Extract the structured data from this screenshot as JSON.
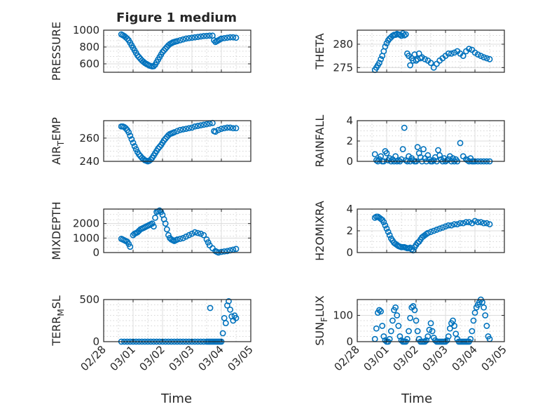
{
  "figure_title": "Figure 1 medium",
  "x_axis_label": "Time",
  "x_tick_labels": [
    "02/28",
    "03/01",
    "03/02",
    "03/03",
    "03/04",
    "03/05"
  ],
  "colors": {
    "marker": "#0072BD",
    "axes": "#262626",
    "grid": "#dcdcdc",
    "background": "#ffffff"
  },
  "chart_data": [
    {
      "type": "scatter",
      "name": "pressure",
      "ylabel": "PRESSURE",
      "ylabel_sub": "",
      "xlim": [
        0,
        5
      ],
      "ylim": [
        500,
        1000
      ],
      "yticks": [
        600,
        800,
        1000
      ],
      "grid": true,
      "x": [
        0.6,
        0.65,
        0.7,
        0.75,
        0.8,
        0.85,
        0.9,
        0.95,
        1.0,
        1.05,
        1.1,
        1.15,
        1.2,
        1.25,
        1.3,
        1.35,
        1.4,
        1.45,
        1.5,
        1.55,
        1.6,
        1.65,
        1.7,
        1.75,
        1.8,
        1.85,
        1.9,
        1.95,
        2.0,
        2.05,
        2.1,
        2.15,
        2.2,
        2.25,
        2.3,
        2.35,
        2.4,
        2.45,
        2.5,
        2.6,
        2.7,
        2.8,
        2.9,
        3.0,
        3.1,
        3.2,
        3.3,
        3.4,
        3.5,
        3.6,
        3.7,
        3.75,
        3.8,
        3.85,
        3.9,
        3.95,
        4.0,
        4.1,
        4.2,
        4.3,
        4.4,
        4.5
      ],
      "y": [
        950,
        940,
        930,
        915,
        900,
        880,
        850,
        820,
        790,
        760,
        730,
        700,
        680,
        660,
        640,
        625,
        610,
        600,
        590,
        580,
        575,
        570,
        572,
        590,
        620,
        650,
        680,
        710,
        740,
        760,
        780,
        800,
        820,
        835,
        845,
        855,
        860,
        865,
        870,
        880,
        890,
        900,
        905,
        910,
        915,
        920,
        925,
        930,
        932,
        935,
        935,
        880,
        860,
        870,
        880,
        890,
        900,
        905,
        910,
        915,
        915,
        910
      ]
    },
    {
      "type": "scatter",
      "name": "theta",
      "ylabel": "THETA",
      "ylabel_sub": "",
      "xlim": [
        0,
        5
      ],
      "ylim": [
        274,
        283
      ],
      "yticks": [
        275,
        280
      ],
      "grid": true,
      "x": [
        0.6,
        0.65,
        0.7,
        0.75,
        0.8,
        0.85,
        0.9,
        0.95,
        1.0,
        1.05,
        1.1,
        1.15,
        1.2,
        1.25,
        1.3,
        1.35,
        1.4,
        1.45,
        1.5,
        1.55,
        1.6,
        1.65,
        1.7,
        1.75,
        1.8,
        1.85,
        1.9,
        1.95,
        2.0,
        2.05,
        2.1,
        2.15,
        2.2,
        2.3,
        2.4,
        2.5,
        2.6,
        2.7,
        2.8,
        2.9,
        3.0,
        3.1,
        3.2,
        3.3,
        3.4,
        3.5,
        3.6,
        3.7,
        3.8,
        3.9,
        4.0,
        4.1,
        4.2,
        4.3,
        4.4,
        4.5
      ],
      "y": [
        274.5,
        275,
        275.5,
        276,
        276.8,
        277.5,
        278.5,
        279.5,
        280.2,
        280.8,
        281.2,
        281.5,
        281.8,
        282,
        282,
        282.2,
        282.1,
        282,
        281.8,
        282.3,
        281.9,
        282.1,
        278,
        277.5,
        275.5,
        277,
        276.5,
        277.8,
        276.5,
        276.8,
        278,
        277,
        277.2,
        276.8,
        276.5,
        276,
        275,
        275.8,
        276.5,
        277,
        277.5,
        278,
        278,
        278.2,
        278.5,
        278,
        277.5,
        278.5,
        279,
        278.8,
        278.2,
        277.8,
        277.5,
        277.2,
        277,
        276.8
      ]
    },
    {
      "type": "scatter",
      "name": "air_temp",
      "ylabel": "AIR",
      "ylabel_sub": "T",
      "ylabel_tail": "EMP",
      "xlim": [
        0,
        5
      ],
      "ylim": [
        240,
        275
      ],
      "yticks": [
        240,
        260
      ],
      "grid": true,
      "x": [
        0.6,
        0.65,
        0.7,
        0.75,
        0.8,
        0.85,
        0.9,
        0.95,
        1.0,
        1.05,
        1.1,
        1.15,
        1.2,
        1.25,
        1.3,
        1.35,
        1.4,
        1.45,
        1.5,
        1.55,
        1.6,
        1.65,
        1.7,
        1.75,
        1.8,
        1.85,
        1.9,
        1.95,
        2.0,
        2.05,
        2.1,
        2.15,
        2.2,
        2.25,
        2.3,
        2.35,
        2.4,
        2.5,
        2.6,
        2.7,
        2.8,
        2.9,
        3.0,
        3.1,
        3.2,
        3.3,
        3.4,
        3.5,
        3.6,
        3.7,
        3.75,
        3.8,
        3.9,
        4.0,
        4.1,
        4.2,
        4.3,
        4.4,
        4.5
      ],
      "y": [
        270,
        270,
        269.5,
        268.5,
        267,
        265,
        262,
        259,
        256,
        253,
        250.5,
        248,
        246,
        244.5,
        243,
        242,
        241,
        240.5,
        240,
        240.5,
        241.5,
        243,
        245,
        247,
        249,
        251,
        252.5,
        254,
        256,
        258,
        259.5,
        261,
        262.5,
        263.5,
        264,
        264.5,
        265,
        266,
        267,
        267.5,
        268,
        268.5,
        269,
        270,
        270.5,
        271,
        271.5,
        272,
        272.5,
        273,
        266,
        265.5,
        267,
        268,
        268.5,
        269,
        269,
        268.5,
        268.5
      ]
    },
    {
      "type": "scatter",
      "name": "rainfall",
      "ylabel": "RAINFALL",
      "ylabel_sub": "",
      "xlim": [
        0,
        5
      ],
      "ylim": [
        0,
        4
      ],
      "yticks": [
        0,
        2,
        4
      ],
      "grid": true,
      "x": [
        0.6,
        0.65,
        0.7,
        0.75,
        0.8,
        0.85,
        0.9,
        0.95,
        1.0,
        1.05,
        1.1,
        1.15,
        1.2,
        1.25,
        1.3,
        1.35,
        1.4,
        1.45,
        1.5,
        1.55,
        1.6,
        1.65,
        1.7,
        1.75,
        1.8,
        1.85,
        1.9,
        1.95,
        2.0,
        2.05,
        2.1,
        2.15,
        2.2,
        2.25,
        2.3,
        2.35,
        2.4,
        2.45,
        2.5,
        2.55,
        2.6,
        2.65,
        2.7,
        2.75,
        2.8,
        2.85,
        2.9,
        2.95,
        3.0,
        3.05,
        3.1,
        3.15,
        3.2,
        3.25,
        3.3,
        3.35,
        3.4,
        3.5,
        3.6,
        3.7,
        3.75,
        3.8,
        3.85,
        3.9,
        3.95,
        4.0,
        4.1,
        4.2,
        4.3,
        4.4,
        4.5
      ],
      "y": [
        0.7,
        0.1,
        0,
        0.2,
        0.5,
        0,
        0,
        1.0,
        0.8,
        0.1,
        0.3,
        0,
        0.2,
        0,
        0.5,
        0,
        0.1,
        0,
        0.2,
        1.2,
        3.3,
        0.1,
        0,
        0.5,
        0,
        0.3,
        0.1,
        0,
        0,
        1.4,
        0.8,
        0.4,
        0,
        1.2,
        0.3,
        0,
        0.6,
        0.2,
        0,
        0,
        0.1,
        0.4,
        0,
        1.1,
        0.6,
        0.2,
        0,
        0.3,
        0,
        0.1,
        0.2,
        0.5,
        0,
        0.3,
        0,
        0.2,
        0,
        1.8,
        0.5,
        0.2,
        0.1,
        0,
        0.3,
        0,
        0,
        0,
        0,
        0,
        0,
        0,
        0
      ]
    },
    {
      "type": "scatter",
      "name": "mixdepth",
      "ylabel": "MIXDEPTH",
      "ylabel_sub": "",
      "xlim": [
        0,
        5
      ],
      "ylim": [
        0,
        3000
      ],
      "yticks": [
        0,
        1000,
        2000
      ],
      "grid": true,
      "x": [
        0.6,
        0.65,
        0.7,
        0.75,
        0.8,
        0.85,
        0.9,
        1.0,
        1.05,
        1.1,
        1.15,
        1.2,
        1.25,
        1.3,
        1.35,
        1.4,
        1.45,
        1.5,
        1.55,
        1.6,
        1.65,
        1.7,
        1.75,
        1.8,
        1.85,
        1.9,
        1.95,
        2.0,
        2.05,
        2.1,
        2.15,
        2.2,
        2.25,
        2.3,
        2.35,
        2.4,
        2.45,
        2.5,
        2.6,
        2.7,
        2.8,
        2.9,
        3.0,
        3.1,
        3.2,
        3.3,
        3.4,
        3.5,
        3.55,
        3.6,
        3.7,
        3.8,
        3.85,
        3.9,
        4.0,
        4.1,
        4.2,
        4.3,
        4.4,
        4.5
      ],
      "y": [
        950,
        900,
        850,
        800,
        750,
        600,
        400,
        1200,
        1300,
        1350,
        1400,
        1500,
        1600,
        1650,
        1700,
        1750,
        1800,
        1850,
        1900,
        1950,
        2000,
        1800,
        2400,
        2800,
        2850,
        2900,
        2800,
        2600,
        2300,
        2000,
        1600,
        1200,
        1000,
        900,
        850,
        800,
        850,
        900,
        950,
        1000,
        1100,
        1200,
        1300,
        1400,
        1350,
        1300,
        1200,
        900,
        700,
        500,
        300,
        100,
        50,
        0,
        50,
        80,
        100,
        150,
        200,
        250
      ]
    },
    {
      "type": "scatter",
      "name": "h2omixra",
      "ylabel": "H2OMIXRA",
      "ylabel_sub": "",
      "xlim": [
        0,
        5
      ],
      "ylim": [
        0,
        4
      ],
      "yticks": [
        0,
        2,
        4
      ],
      "grid": true,
      "x": [
        0.6,
        0.65,
        0.7,
        0.75,
        0.8,
        0.85,
        0.9,
        0.95,
        1.0,
        1.05,
        1.1,
        1.15,
        1.2,
        1.25,
        1.3,
        1.35,
        1.4,
        1.45,
        1.5,
        1.55,
        1.6,
        1.65,
        1.7,
        1.75,
        1.8,
        1.85,
        1.9,
        1.95,
        2.0,
        2.05,
        2.1,
        2.15,
        2.2,
        2.25,
        2.3,
        2.35,
        2.4,
        2.5,
        2.6,
        2.7,
        2.8,
        2.9,
        3.0,
        3.1,
        3.2,
        3.3,
        3.4,
        3.5,
        3.6,
        3.7,
        3.8,
        3.9,
        4.0,
        4.1,
        4.2,
        4.3,
        4.4,
        4.5
      ],
      "y": [
        3.2,
        3.3,
        3.3,
        3.2,
        3.1,
        3.0,
        2.8,
        2.5,
        2.2,
        1.9,
        1.6,
        1.3,
        1.1,
        0.9,
        0.8,
        0.7,
        0.6,
        0.55,
        0.5,
        0.5,
        0.5,
        0.45,
        0.4,
        0.4,
        0.45,
        0.3,
        0.2,
        0.5,
        0.7,
        0.9,
        1.0,
        1.2,
        1.4,
        1.5,
        1.6,
        1.7,
        1.8,
        1.9,
        2.0,
        2.1,
        2.2,
        2.3,
        2.4,
        2.5,
        2.5,
        2.6,
        2.6,
        2.7,
        2.7,
        2.8,
        2.8,
        2.7,
        2.9,
        2.8,
        2.8,
        2.7,
        2.7,
        2.6
      ]
    },
    {
      "type": "scatter",
      "name": "terr_msl",
      "ylabel": "TERR",
      "ylabel_sub": "M",
      "ylabel_tail": "SL",
      "xlim": [
        0,
        5
      ],
      "ylim": [
        0,
        500
      ],
      "yticks": [
        0,
        500
      ],
      "grid": true,
      "x": [
        0.6,
        0.7,
        0.8,
        0.9,
        1.0,
        1.1,
        1.2,
        1.3,
        1.4,
        1.5,
        1.6,
        1.7,
        1.8,
        1.9,
        2.0,
        2.1,
        2.2,
        2.3,
        2.4,
        2.5,
        2.6,
        2.7,
        2.8,
        2.9,
        3.0,
        3.1,
        3.2,
        3.3,
        3.4,
        3.5,
        3.55,
        3.6,
        3.62,
        3.65,
        3.7,
        3.75,
        3.8,
        3.85,
        3.9,
        3.95,
        4.0,
        4.05,
        4.1,
        4.15,
        4.2,
        4.25,
        4.3,
        4.35,
        4.4,
        4.45,
        4.5
      ],
      "y": [
        0,
        0,
        0,
        0,
        0,
        0,
        0,
        0,
        0,
        0,
        0,
        0,
        0,
        0,
        0,
        0,
        0,
        0,
        0,
        0,
        0,
        0,
        0,
        0,
        0,
        0,
        0,
        0,
        0,
        0,
        0,
        0,
        400,
        0,
        0,
        0,
        0,
        0,
        0,
        0,
        0,
        100,
        280,
        220,
        430,
        480,
        380,
        300,
        250,
        310,
        280
      ]
    },
    {
      "type": "scatter",
      "name": "sun_flux",
      "ylabel": "SUN",
      "ylabel_sub": "F",
      "ylabel_tail": "LUX",
      "xlim": [
        0,
        5
      ],
      "ylim": [
        0,
        160
      ],
      "yticks": [
        0,
        100
      ],
      "grid": true,
      "x": [
        0.6,
        0.65,
        0.7,
        0.75,
        0.8,
        0.85,
        0.9,
        0.95,
        1.0,
        1.05,
        1.1,
        1.15,
        1.2,
        1.25,
        1.3,
        1.35,
        1.4,
        1.45,
        1.5,
        1.55,
        1.6,
        1.65,
        1.7,
        1.75,
        1.8,
        1.85,
        1.9,
        1.95,
        2.0,
        2.05,
        2.1,
        2.15,
        2.2,
        2.25,
        2.3,
        2.35,
        2.4,
        2.45,
        2.5,
        2.55,
        2.6,
        2.65,
        2.7,
        2.75,
        2.8,
        2.85,
        2.9,
        2.95,
        3.0,
        3.05,
        3.1,
        3.15,
        3.2,
        3.25,
        3.3,
        3.35,
        3.4,
        3.45,
        3.5,
        3.55,
        3.6,
        3.65,
        3.7,
        3.75,
        3.8,
        3.85,
        3.9,
        3.95,
        4.0,
        4.05,
        4.1,
        4.15,
        4.2,
        4.25,
        4.3,
        4.35,
        4.4,
        4.45,
        4.5
      ],
      "y": [
        10,
        50,
        110,
        120,
        115,
        60,
        20,
        5,
        0,
        0,
        10,
        40,
        80,
        120,
        130,
        100,
        60,
        20,
        5,
        0,
        0,
        0,
        10,
        40,
        90,
        130,
        135,
        120,
        80,
        40,
        10,
        0,
        0,
        0,
        0,
        5,
        20,
        45,
        70,
        40,
        15,
        5,
        0,
        0,
        0,
        0,
        0,
        0,
        0,
        5,
        20,
        50,
        70,
        80,
        60,
        30,
        10,
        0,
        0,
        0,
        0,
        0,
        0,
        0,
        0,
        10,
        40,
        80,
        110,
        130,
        140,
        150,
        160,
        150,
        130,
        100,
        60,
        20,
        10
      ]
    }
  ]
}
